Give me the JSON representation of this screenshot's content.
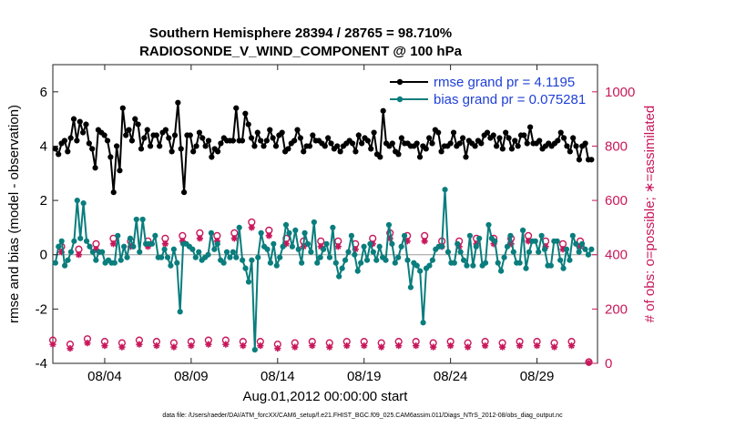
{
  "chart_data": {
    "type": "line",
    "title_line1": "Southern Hemisphere 28394 / 28765 = 98.710%",
    "title_line2": "RADIOSONDE_V_WIND_COMPONENT @ 100 hPa",
    "xlabel": "Aug.01,2012 00:00:00 start",
    "ylabel_left": "rmse and bias (model - observation)",
    "ylabel_right": "# of obs: o=possible; ∗=assimilated",
    "xlim": [
      0,
      31.5
    ],
    "ylim_left": [
      -4,
      7
    ],
    "ylim_right": [
      0,
      1100
    ],
    "x_ticks": [
      {
        "x": 3,
        "label": "08/04"
      },
      {
        "x": 8,
        "label": "08/09"
      },
      {
        "x": 13,
        "label": "08/14"
      },
      {
        "x": 18,
        "label": "08/19"
      },
      {
        "x": 23,
        "label": "08/24"
      },
      {
        "x": 28,
        "label": "08/29"
      }
    ],
    "y_ticks_left": [
      "-4",
      "-2",
      "0",
      "2",
      "4",
      "6"
    ],
    "y_ticks_right": [
      "0",
      "200",
      "400",
      "600",
      "800",
      "1000"
    ],
    "footer": "data file: /Users/raeder/DAI/ATM_forcXX/CAM6_setup/f.e21.FHIST_BGC.f09_025.CAM6assim.011/Diags_NTrS_2012-08/obs_diag_output.nc",
    "colors": {
      "rmse": "#000000",
      "bias": "#0a7d7d",
      "obs": "#c8175a",
      "legend_text": "#1f3fd6",
      "zero_line": "#999999"
    },
    "series": [
      {
        "name": "rmse",
        "legend": "rmse grand pr = 4.1195",
        "values": [
          3.9,
          3.7,
          4.1,
          4.2,
          3.8,
          4.3,
          5.0,
          4.2,
          4.9,
          4.5,
          4.8,
          4.1,
          3.9,
          3.2,
          4.6,
          4.5,
          4.4,
          4.2,
          3.6,
          2.3,
          4.0,
          3.1,
          5.4,
          4.4,
          4.6,
          4.2,
          5.0,
          4.8,
          3.9,
          4.3,
          4.6,
          4.0,
          4.4,
          4.4,
          4.0,
          4.5,
          4.6,
          4.3,
          3.8,
          4.4,
          5.6,
          3.9,
          2.3,
          4.4,
          4.4,
          3.8,
          4.0,
          4.5,
          4.3,
          4.0,
          4.2,
          3.6,
          3.9,
          3.8,
          4.1,
          4.3,
          4.2,
          4.2,
          4.2,
          5.4,
          4.2,
          4.2,
          5.2,
          4.8,
          4.3,
          4.0,
          4.5,
          4.2,
          4.0,
          4.2,
          4.6,
          4.3,
          4.0,
          4.4,
          4.5,
          3.8,
          3.9,
          4.1,
          4.2,
          4.6,
          4.3,
          3.8,
          4.0,
          4.0,
          4.4,
          4.2,
          4.2,
          4.1,
          4.0,
          4.3,
          4.1,
          3.9,
          4.0,
          3.8,
          4.0,
          4.1,
          4.2,
          4.1,
          3.8,
          4.4,
          4.1,
          4.3,
          4.2,
          3.9,
          4.5,
          3.7,
          3.6,
          5.3,
          4.1,
          4.0,
          4.1,
          3.8,
          3.7,
          4.3,
          4.1,
          4.1,
          4.0,
          4.0,
          4.1,
          3.6,
          4.0,
          3.9,
          4.3,
          4.1,
          4.6,
          4.5,
          3.8,
          4.0,
          4.0,
          4.1,
          4.5,
          4.0,
          4.1,
          4.3,
          3.6,
          4.2,
          4.1,
          4.0,
          4.2,
          4.1,
          4.4,
          4.5,
          4.3,
          4.4,
          4.0,
          4.3,
          3.9,
          4.5,
          4.3,
          3.9,
          4.2,
          4.0,
          4.4,
          4.4,
          4.1,
          4.7,
          4.1,
          4.1,
          4.2,
          3.9,
          4.0,
          4.1,
          4.0,
          4.1,
          4.2,
          4.5,
          4.3,
          4.0,
          3.8,
          4.3,
          4.0,
          3.5,
          4.0,
          4.1,
          3.5,
          3.5
        ]
      },
      {
        "name": "bias",
        "legend": "bias grand pr = 0.075281",
        "values": [
          -0.3,
          0.3,
          0.5,
          -0.4,
          -0.2,
          0.1,
          0.5,
          2.0,
          0.6,
          1.9,
          0.5,
          0.3,
          0.1,
          -0.2,
          0.1,
          0.1,
          -0.3,
          -0.2,
          -0.3,
          -0.3,
          0.7,
          -0.2,
          0.3,
          -0.1,
          0.6,
          0.3,
          1.3,
          0.1,
          1.3,
          0.4,
          0.4,
          0.4,
          0.7,
          -0.1,
          -0.1,
          0.2,
          -0.1,
          -0.4,
          0.2,
          -0.3,
          -2.1,
          0.4,
          0.4,
          0.3,
          0.2,
          -0.1,
          0.1,
          -0.2,
          -0.1,
          0.0,
          0.8,
          0.2,
          0.4,
          -0.2,
          -0.3,
          0.1,
          -0.1,
          0.1,
          -0.1,
          1.0,
          -0.2,
          -0.5,
          -1.0,
          -0.2,
          -3.5,
          -0.1,
          0.8,
          0.3,
          0.2,
          -0.3,
          0.4,
          -0.4,
          -0.1,
          0.3,
          1.1,
          0.8,
          0.3,
          0.9,
          0.2,
          -0.3,
          0.8,
          0.4,
          0.1,
          1.2,
          -0.3,
          -0.1,
          0.2,
          0.4,
          -0.1,
          1.0,
          -0.3,
          -0.8,
          -0.5,
          -0.2,
          0.1,
          0.7,
          0.0,
          -0.6,
          -0.3,
          0.3,
          -0.2,
          0.4,
          0.1,
          -0.2,
          0.3,
          -0.1,
          -0.2,
          1.1,
          0.4,
          -0.3,
          -0.1,
          0.3,
          0.7,
          -0.2,
          -1.2,
          -0.3,
          -0.4,
          -0.6,
          -2.5,
          -0.5,
          -0.4,
          -0.2,
          0.2,
          0.3,
          0.3,
          2.4,
          0.1,
          -0.3,
          -0.3,
          0.4,
          0.1,
          -0.2,
          -0.4,
          0.7,
          -0.4,
          0.3,
          0.6,
          -0.4,
          -0.3,
          1.1,
          0.6,
          0.5,
          -0.3,
          -0.6,
          -0.1,
          0.3,
          0.7,
          0.1,
          -0.3,
          -0.3,
          0.9,
          -0.5,
          0.1,
          0.5,
          0.5,
          0.1,
          0.7,
          0.2,
          -0.4,
          -0.4,
          0.5,
          0.5,
          -0.2,
          -0.5,
          0.2,
          -0.2,
          0.7,
          0.4,
          0.1,
          0.4,
          0.2,
          0.0,
          0.2
        ]
      },
      {
        "name": "obs_possible_00Z",
        "values": [
          430,
          420,
          440,
          460,
          450,
          450,
          460,
          470,
          480,
          470,
          480,
          520,
          490,
          460,
          450,
          450,
          450,
          440,
          460,
          480,
          470,
          470,
          450,
          450,
          460,
          460,
          460,
          470,
          450,
          440,
          450
        ]
      },
      {
        "name": "obs_assimilated_00Z",
        "values": [
          410,
          400,
          420,
          440,
          430,
          430,
          440,
          450,
          460,
          450,
          460,
          500,
          470,
          440,
          430,
          430,
          430,
          420,
          440,
          460,
          450,
          450,
          430,
          430,
          440,
          440,
          440,
          450,
          430,
          420,
          430
        ]
      },
      {
        "name": "obs_possible_12Z",
        "values": [
          85,
          70,
          90,
          80,
          75,
          85,
          80,
          75,
          80,
          85,
          85,
          80,
          80,
          70,
          75,
          80,
          75,
          80,
          80,
          75,
          80,
          80,
          75,
          80,
          75,
          80,
          75,
          80,
          80,
          75,
          80,
          5
        ]
      },
      {
        "name": "obs_assimilated_12Z",
        "values": [
          70,
          55,
          75,
          65,
          60,
          70,
          65,
          60,
          65,
          70,
          70,
          65,
          65,
          55,
          60,
          65,
          60,
          65,
          65,
          60,
          65,
          65,
          60,
          65,
          60,
          65,
          60,
          65,
          65,
          60,
          65,
          2
        ]
      }
    ]
  }
}
